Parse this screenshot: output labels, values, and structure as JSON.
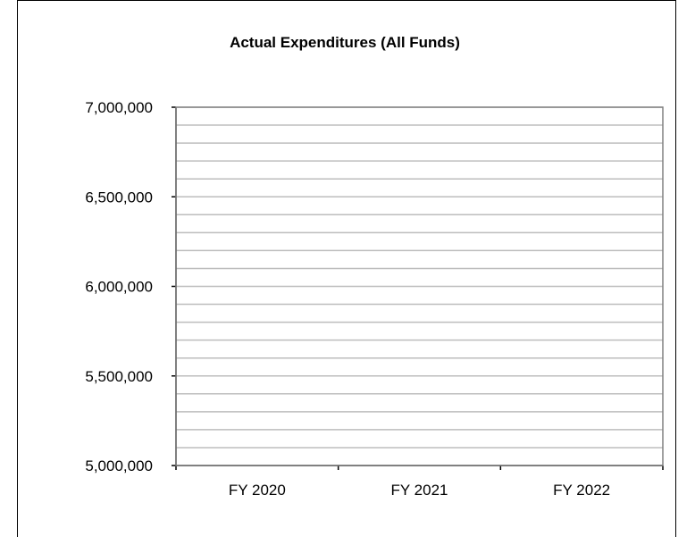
{
  "chart_data": {
    "type": "bar",
    "title": "Actual Expenditures (All Funds)",
    "categories": [
      "FY 2020",
      "FY 2021",
      "FY 2022"
    ],
    "series": [
      {
        "values": [
          null,
          null,
          null
        ]
      }
    ],
    "ylim": [
      5000000,
      7000000
    ],
    "y_major_step": 500000,
    "y_minor_step": 100000,
    "y_tick_labels": [
      "5,000,000",
      "5,500,000",
      "6,000,000",
      "6,500,000",
      "7,000,000"
    ],
    "grid": true,
    "legend": "none",
    "colors": {
      "grid": "#bdbdbd",
      "axis": "#000000",
      "frame": "#808080"
    }
  }
}
